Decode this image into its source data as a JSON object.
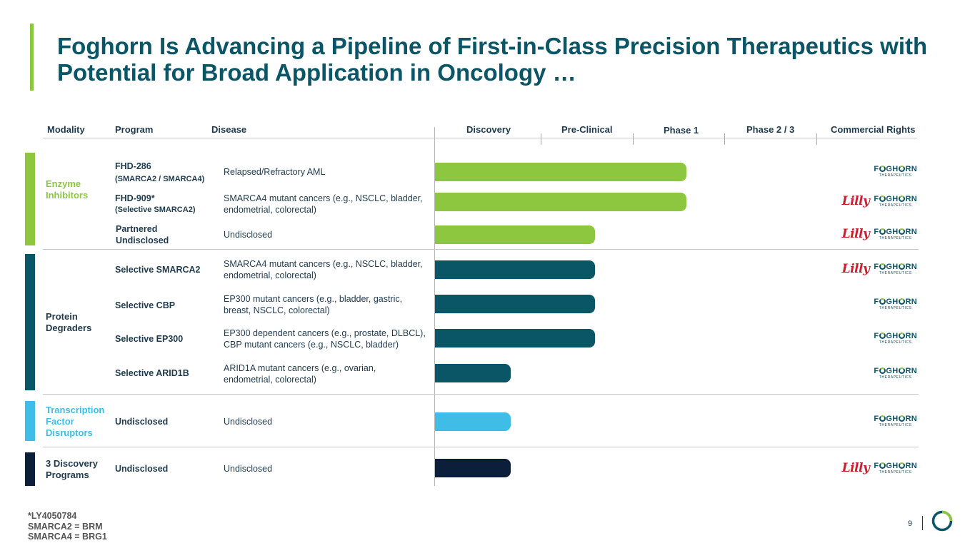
{
  "title": "Foghorn Is Advancing a Pipeline of First-in-Class Precision Therapeutics with Potential for Broad Application in Oncology …",
  "headers": {
    "modality": "Modality",
    "program": "Program",
    "disease": "Disease",
    "discovery": "Discovery",
    "preclinical": "Pre-Clinical",
    "phase1": "Phase 1",
    "phase23": "Phase 2 / 3",
    "rights": "Commercial Rights"
  },
  "modalities": [
    {
      "label": "Enzyme Inhibitors",
      "color": "#8dc63f"
    },
    {
      "label": "Protein Degraders",
      "color": "#0a5566"
    },
    {
      "label": "Transcription Factor Disruptors",
      "color": "#40bde6"
    },
    {
      "label": "3 Discovery Programs",
      "color": "#0b1f3a"
    }
  ],
  "stages": [
    "Discovery",
    "Pre-Clinical",
    "Phase 1",
    "Phase 2 / 3"
  ],
  "programs": [
    {
      "program": "FHD-286",
      "sub": "(SMARCA2 / SMARCA4)",
      "disease": "Relapsed/Refractory AML",
      "progress_stage": 2.75,
      "modality": 0,
      "partner": "FOGHORN"
    },
    {
      "program": "FHD-909*",
      "sub": "(Selective SMARCA2)",
      "disease": "SMARCA4 mutant cancers (e.g., NSCLC, bladder, endometrial, colorectal)",
      "progress_stage": 2.75,
      "modality": 0,
      "partner": "Lilly + FOGHORN"
    },
    {
      "program": "Partnered Undisclosed",
      "sub": "",
      "disease": "Undisclosed",
      "progress_stage": 1.75,
      "modality": 0,
      "partner": "Lilly + FOGHORN"
    },
    {
      "program": "Selective SMARCA2",
      "sub": "",
      "disease": "SMARCA4 mutant cancers (e.g., NSCLC, bladder, endometrial, colorectal)",
      "progress_stage": 1.75,
      "modality": 1,
      "partner": "Lilly + FOGHORN"
    },
    {
      "program": "Selective CBP",
      "sub": "",
      "disease": "EP300 mutant cancers (e.g., bladder, gastric, breast, NSCLC, colorectal)",
      "progress_stage": 1.75,
      "modality": 1,
      "partner": "FOGHORN"
    },
    {
      "program": "Selective EP300",
      "sub": "",
      "disease": "EP300 dependent cancers (e.g., prostate, DLBCL), CBP mutant cancers (e.g., NSCLC, bladder)",
      "progress_stage": 1.75,
      "modality": 1,
      "partner": "FOGHORN"
    },
    {
      "program": "Selective ARID1B",
      "sub": "",
      "disease": "ARID1A mutant cancers (e.g., ovarian, endometrial, colorectal)",
      "progress_stage": 0.83,
      "modality": 1,
      "partner": "FOGHORN"
    },
    {
      "program": "Undisclosed",
      "sub": "",
      "disease": "Undisclosed",
      "progress_stage": 0.83,
      "modality": 2,
      "partner": "FOGHORN"
    },
    {
      "program": "Undisclosed",
      "sub": "",
      "disease": "Undisclosed",
      "progress_stage": 0.83,
      "modality": 3,
      "partner": "Lilly + FOGHORN"
    }
  ],
  "logo": {
    "lilly": "Lilly",
    "foghorn_pre": "F",
    "foghorn_mid": "GH",
    "foghorn_post": "RN",
    "foghorn_tm": "®",
    "therapeutics": "THERAPEUTICS"
  },
  "footnotes": [
    "*LY4050784",
    "SMARCA2 = BRM",
    "SMARCA4 = BRG1"
  ],
  "page_number": "9",
  "colors": {
    "green": "#8dc63f",
    "teal": "#0a5566",
    "light_blue": "#40bde6",
    "navy": "#0b1f3a",
    "lilly_red": "#c8202f"
  }
}
